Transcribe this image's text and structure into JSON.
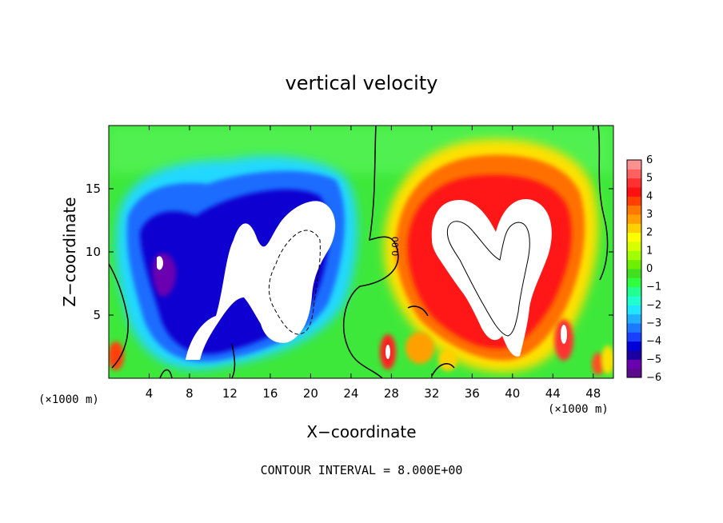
{
  "chart_data": {
    "type": "heatmap",
    "title": "vertical velocity",
    "xlabel": "X−coordinate",
    "ylabel": "Z−coordinate",
    "x_unit_label": "(×1000 m)",
    "x_unit_label_right": "(×1000 m)",
    "footer": "CONTOUR INTERVAL = 8.000E+00",
    "xlim": [
      0,
      50
    ],
    "ylim": [
      0,
      20
    ],
    "x_ticks": [
      4,
      8,
      12,
      16,
      20,
      24,
      28,
      32,
      36,
      40,
      44,
      48
    ],
    "y_ticks": [
      5,
      10,
      15
    ],
    "x_tick_labels": [
      "4",
      "8",
      "12",
      "16",
      "20",
      "24",
      "28",
      "32",
      "36",
      "40",
      "44",
      "48"
    ],
    "y_tick_labels": [
      "5",
      "10",
      "15"
    ],
    "contour_label": "0.00",
    "colorbar": {
      "range": [
        -6,
        6
      ],
      "tick_labels": [
        "6",
        "5",
        "4",
        "3",
        "2",
        "1",
        "0",
        "−1",
        "−2",
        "−3",
        "−4",
        "−5",
        "−6"
      ],
      "tick_values": [
        6,
        5,
        4,
        3,
        2,
        1,
        0,
        -1,
        -2,
        -3,
        -4,
        -5,
        -6
      ],
      "colors": [
        "#5a0a8c",
        "#6a00b0",
        "#1a00a0",
        "#0000d8",
        "#1a40ff",
        "#1c78ff",
        "#20b0ff",
        "#20e6ff",
        "#20ffd0",
        "#20ff90",
        "#30ff40",
        "#40e020",
        "#6cf000",
        "#a0ff00",
        "#d8ff00",
        "#ffff00",
        "#ffd000",
        "#ffa000",
        "#ff7800",
        "#ff4000",
        "#ff1010",
        "#ff3030",
        "#ff6060",
        "#ff9090"
      ],
      "over_color": "#ffffff",
      "under_color": "#ffffff"
    },
    "features": [
      {
        "type": "downdraft",
        "x_center": 14,
        "z_center": 10,
        "min_value": -6
      },
      {
        "type": "updraft",
        "x_center": 38,
        "z_center": 10,
        "max_value": 6
      }
    ]
  }
}
